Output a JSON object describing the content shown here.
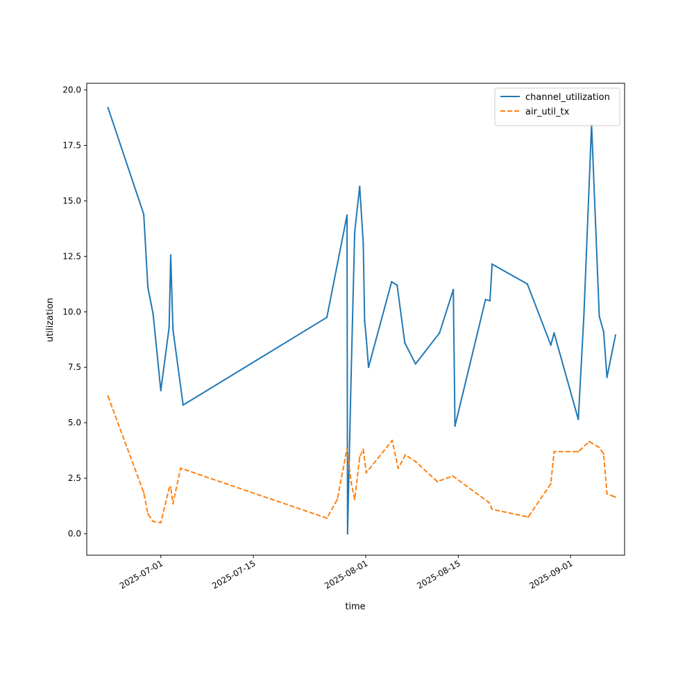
{
  "chart_data": {
    "type": "line",
    "title": "",
    "xlabel": "time",
    "ylabel": "utilization",
    "x_tick_labels": [
      "2025-07-01",
      "2025-07-15",
      "2025-08-01",
      "2025-08-15",
      "2025-09-01"
    ],
    "x_tick_dates": [
      "2025-07-01",
      "2025-07-15",
      "2025-08-01",
      "2025-08-15",
      "2025-09-01"
    ],
    "y_tick_labels": [
      "0.0",
      "2.5",
      "5.0",
      "7.5",
      "10.0",
      "12.5",
      "15.0",
      "17.5",
      "20.0"
    ],
    "xlim": [
      "2025-06-19 19:00",
      "2025-09-09 04:00"
    ],
    "ylim": [
      -0.97,
      20.3
    ],
    "grid": false,
    "legend_position": "top-right",
    "series": [
      {
        "name": "channel_utilization",
        "color": "#1f77b4",
        "dash": "solid",
        "points": [
          [
            "2025-06-23 00:00",
            19.2
          ],
          [
            "2025-06-28 10:00",
            14.4
          ],
          [
            "2025-06-29 01:00",
            11.1
          ],
          [
            "2025-06-29 20:00",
            9.9
          ],
          [
            "2025-07-01 00:00",
            6.45
          ],
          [
            "2025-07-02 06:00",
            9.3
          ],
          [
            "2025-07-02 12:00",
            12.55
          ],
          [
            "2025-07-02 20:00",
            9.2
          ],
          [
            "2025-07-04 09:00",
            5.8
          ],
          [
            "2025-07-26 03:00",
            9.75
          ],
          [
            "2025-07-29 04:00",
            14.35
          ],
          [
            "2025-07-29 06:00",
            0.0
          ],
          [
            "2025-07-29 19:00",
            7.2
          ],
          [
            "2025-07-30 08:00",
            13.6
          ],
          [
            "2025-07-31 02:00",
            15.65
          ],
          [
            "2025-07-31 15:00",
            13.1
          ],
          [
            "2025-07-31 20:00",
            9.6
          ],
          [
            "2025-08-01 02:00",
            8.8
          ],
          [
            "2025-08-01 10:00",
            7.5
          ],
          [
            "2025-08-04 22:00",
            11.35
          ],
          [
            "2025-08-05 18:00",
            11.2
          ],
          [
            "2025-08-06 22:00",
            8.6
          ],
          [
            "2025-08-08 13:00",
            7.65
          ],
          [
            "2025-08-12 04:00",
            9.05
          ],
          [
            "2025-08-14 06:00",
            11.0
          ],
          [
            "2025-08-14 12:00",
            4.85
          ],
          [
            "2025-08-19 03:00",
            10.55
          ],
          [
            "2025-08-19 19:00",
            10.5
          ],
          [
            "2025-08-20 03:00",
            12.15
          ],
          [
            "2025-08-25 11:00",
            11.25
          ],
          [
            "2025-08-29 00:00",
            8.5
          ],
          [
            "2025-08-29 12:00",
            9.05
          ],
          [
            "2025-09-02 04:00",
            5.15
          ],
          [
            "2025-09-03 00:00",
            9.8
          ],
          [
            "2025-09-04 04:00",
            18.45
          ],
          [
            "2025-09-05 08:00",
            9.8
          ],
          [
            "2025-09-06 00:00",
            9.1
          ],
          [
            "2025-09-06 12:00",
            7.05
          ],
          [
            "2025-09-07 19:00",
            8.95
          ]
        ]
      },
      {
        "name": "air_util_tx",
        "color": "#ff7f0e",
        "dash": "dashed",
        "points": [
          [
            "2025-06-23 00:00",
            6.2
          ],
          [
            "2025-06-28 10:00",
            1.85
          ],
          [
            "2025-06-29 01:00",
            0.9
          ],
          [
            "2025-06-29 20:00",
            0.55
          ],
          [
            "2025-07-01 00:00",
            0.5
          ],
          [
            "2025-07-02 06:00",
            2.05
          ],
          [
            "2025-07-02 12:00",
            2.1
          ],
          [
            "2025-07-02 20:00",
            1.35
          ],
          [
            "2025-07-04 00:00",
            2.95
          ],
          [
            "2025-07-26 03:00",
            0.7
          ],
          [
            "2025-07-27 17:00",
            1.55
          ],
          [
            "2025-07-29 04:00",
            3.85
          ],
          [
            "2025-07-29 19:00",
            2.3
          ],
          [
            "2025-07-30 08:00",
            1.55
          ],
          [
            "2025-07-31 02:00",
            3.45
          ],
          [
            "2025-07-31 15:00",
            3.8
          ],
          [
            "2025-08-01 02:00",
            2.75
          ],
          [
            "2025-08-05 00:00",
            4.2
          ],
          [
            "2025-08-05 22:00",
            2.95
          ],
          [
            "2025-08-07 00:00",
            3.55
          ],
          [
            "2025-08-08 13:00",
            3.25
          ],
          [
            "2025-08-11 20:00",
            2.35
          ],
          [
            "2025-08-14 04:00",
            2.6
          ],
          [
            "2025-08-19 16:00",
            1.4
          ],
          [
            "2025-08-20 03:00",
            1.1
          ],
          [
            "2025-08-25 14:00",
            0.75
          ],
          [
            "2025-08-29 00:00",
            2.25
          ],
          [
            "2025-08-29 12:00",
            3.7
          ],
          [
            "2025-09-02 04:00",
            3.7
          ],
          [
            "2025-09-03 20:00",
            4.15
          ],
          [
            "2025-09-05 06:00",
            3.9
          ],
          [
            "2025-09-06 00:00",
            3.6
          ],
          [
            "2025-09-06 12:00",
            1.8
          ],
          [
            "2025-09-07 18:00",
            1.65
          ]
        ]
      }
    ]
  }
}
